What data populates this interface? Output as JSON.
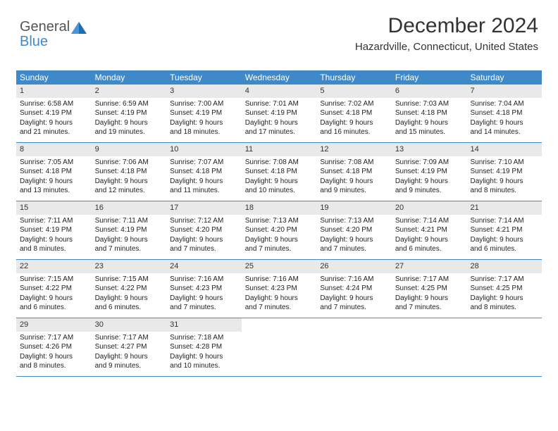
{
  "logo": {
    "general": "General",
    "blue": "Blue"
  },
  "header": {
    "month_title": "December 2024",
    "location": "Hazardville, Connecticut, United States"
  },
  "colors": {
    "header_bg": "#4089c8",
    "header_text": "#ffffff",
    "day_number_bg": "#e9e9e9",
    "text": "#222222",
    "logo_gray": "#555555",
    "logo_blue": "#4089c8",
    "week_border": "#4089c8"
  },
  "day_names": [
    "Sunday",
    "Monday",
    "Tuesday",
    "Wednesday",
    "Thursday",
    "Friday",
    "Saturday"
  ],
  "weeks": [
    [
      {
        "num": "1",
        "sr": "Sunrise: 6:58 AM",
        "ss": "Sunset: 4:19 PM",
        "d1": "Daylight: 9 hours",
        "d2": "and 21 minutes."
      },
      {
        "num": "2",
        "sr": "Sunrise: 6:59 AM",
        "ss": "Sunset: 4:19 PM",
        "d1": "Daylight: 9 hours",
        "d2": "and 19 minutes."
      },
      {
        "num": "3",
        "sr": "Sunrise: 7:00 AM",
        "ss": "Sunset: 4:19 PM",
        "d1": "Daylight: 9 hours",
        "d2": "and 18 minutes."
      },
      {
        "num": "4",
        "sr": "Sunrise: 7:01 AM",
        "ss": "Sunset: 4:19 PM",
        "d1": "Daylight: 9 hours",
        "d2": "and 17 minutes."
      },
      {
        "num": "5",
        "sr": "Sunrise: 7:02 AM",
        "ss": "Sunset: 4:18 PM",
        "d1": "Daylight: 9 hours",
        "d2": "and 16 minutes."
      },
      {
        "num": "6",
        "sr": "Sunrise: 7:03 AM",
        "ss": "Sunset: 4:18 PM",
        "d1": "Daylight: 9 hours",
        "d2": "and 15 minutes."
      },
      {
        "num": "7",
        "sr": "Sunrise: 7:04 AM",
        "ss": "Sunset: 4:18 PM",
        "d1": "Daylight: 9 hours",
        "d2": "and 14 minutes."
      }
    ],
    [
      {
        "num": "8",
        "sr": "Sunrise: 7:05 AM",
        "ss": "Sunset: 4:18 PM",
        "d1": "Daylight: 9 hours",
        "d2": "and 13 minutes."
      },
      {
        "num": "9",
        "sr": "Sunrise: 7:06 AM",
        "ss": "Sunset: 4:18 PM",
        "d1": "Daylight: 9 hours",
        "d2": "and 12 minutes."
      },
      {
        "num": "10",
        "sr": "Sunrise: 7:07 AM",
        "ss": "Sunset: 4:18 PM",
        "d1": "Daylight: 9 hours",
        "d2": "and 11 minutes."
      },
      {
        "num": "11",
        "sr": "Sunrise: 7:08 AM",
        "ss": "Sunset: 4:18 PM",
        "d1": "Daylight: 9 hours",
        "d2": "and 10 minutes."
      },
      {
        "num": "12",
        "sr": "Sunrise: 7:08 AM",
        "ss": "Sunset: 4:18 PM",
        "d1": "Daylight: 9 hours",
        "d2": "and 9 minutes."
      },
      {
        "num": "13",
        "sr": "Sunrise: 7:09 AM",
        "ss": "Sunset: 4:19 PM",
        "d1": "Daylight: 9 hours",
        "d2": "and 9 minutes."
      },
      {
        "num": "14",
        "sr": "Sunrise: 7:10 AM",
        "ss": "Sunset: 4:19 PM",
        "d1": "Daylight: 9 hours",
        "d2": "and 8 minutes."
      }
    ],
    [
      {
        "num": "15",
        "sr": "Sunrise: 7:11 AM",
        "ss": "Sunset: 4:19 PM",
        "d1": "Daylight: 9 hours",
        "d2": "and 8 minutes."
      },
      {
        "num": "16",
        "sr": "Sunrise: 7:11 AM",
        "ss": "Sunset: 4:19 PM",
        "d1": "Daylight: 9 hours",
        "d2": "and 7 minutes."
      },
      {
        "num": "17",
        "sr": "Sunrise: 7:12 AM",
        "ss": "Sunset: 4:20 PM",
        "d1": "Daylight: 9 hours",
        "d2": "and 7 minutes."
      },
      {
        "num": "18",
        "sr": "Sunrise: 7:13 AM",
        "ss": "Sunset: 4:20 PM",
        "d1": "Daylight: 9 hours",
        "d2": "and 7 minutes."
      },
      {
        "num": "19",
        "sr": "Sunrise: 7:13 AM",
        "ss": "Sunset: 4:20 PM",
        "d1": "Daylight: 9 hours",
        "d2": "and 7 minutes."
      },
      {
        "num": "20",
        "sr": "Sunrise: 7:14 AM",
        "ss": "Sunset: 4:21 PM",
        "d1": "Daylight: 9 hours",
        "d2": "and 6 minutes."
      },
      {
        "num": "21",
        "sr": "Sunrise: 7:14 AM",
        "ss": "Sunset: 4:21 PM",
        "d1": "Daylight: 9 hours",
        "d2": "and 6 minutes."
      }
    ],
    [
      {
        "num": "22",
        "sr": "Sunrise: 7:15 AM",
        "ss": "Sunset: 4:22 PM",
        "d1": "Daylight: 9 hours",
        "d2": "and 6 minutes."
      },
      {
        "num": "23",
        "sr": "Sunrise: 7:15 AM",
        "ss": "Sunset: 4:22 PM",
        "d1": "Daylight: 9 hours",
        "d2": "and 6 minutes."
      },
      {
        "num": "24",
        "sr": "Sunrise: 7:16 AM",
        "ss": "Sunset: 4:23 PM",
        "d1": "Daylight: 9 hours",
        "d2": "and 7 minutes."
      },
      {
        "num": "25",
        "sr": "Sunrise: 7:16 AM",
        "ss": "Sunset: 4:23 PM",
        "d1": "Daylight: 9 hours",
        "d2": "and 7 minutes."
      },
      {
        "num": "26",
        "sr": "Sunrise: 7:16 AM",
        "ss": "Sunset: 4:24 PM",
        "d1": "Daylight: 9 hours",
        "d2": "and 7 minutes."
      },
      {
        "num": "27",
        "sr": "Sunrise: 7:17 AM",
        "ss": "Sunset: 4:25 PM",
        "d1": "Daylight: 9 hours",
        "d2": "and 7 minutes."
      },
      {
        "num": "28",
        "sr": "Sunrise: 7:17 AM",
        "ss": "Sunset: 4:25 PM",
        "d1": "Daylight: 9 hours",
        "d2": "and 8 minutes."
      }
    ],
    [
      {
        "num": "29",
        "sr": "Sunrise: 7:17 AM",
        "ss": "Sunset: 4:26 PM",
        "d1": "Daylight: 9 hours",
        "d2": "and 8 minutes."
      },
      {
        "num": "30",
        "sr": "Sunrise: 7:17 AM",
        "ss": "Sunset: 4:27 PM",
        "d1": "Daylight: 9 hours",
        "d2": "and 9 minutes."
      },
      {
        "num": "31",
        "sr": "Sunrise: 7:18 AM",
        "ss": "Sunset: 4:28 PM",
        "d1": "Daylight: 9 hours",
        "d2": "and 10 minutes."
      },
      {
        "empty": true
      },
      {
        "empty": true
      },
      {
        "empty": true
      },
      {
        "empty": true
      }
    ]
  ]
}
